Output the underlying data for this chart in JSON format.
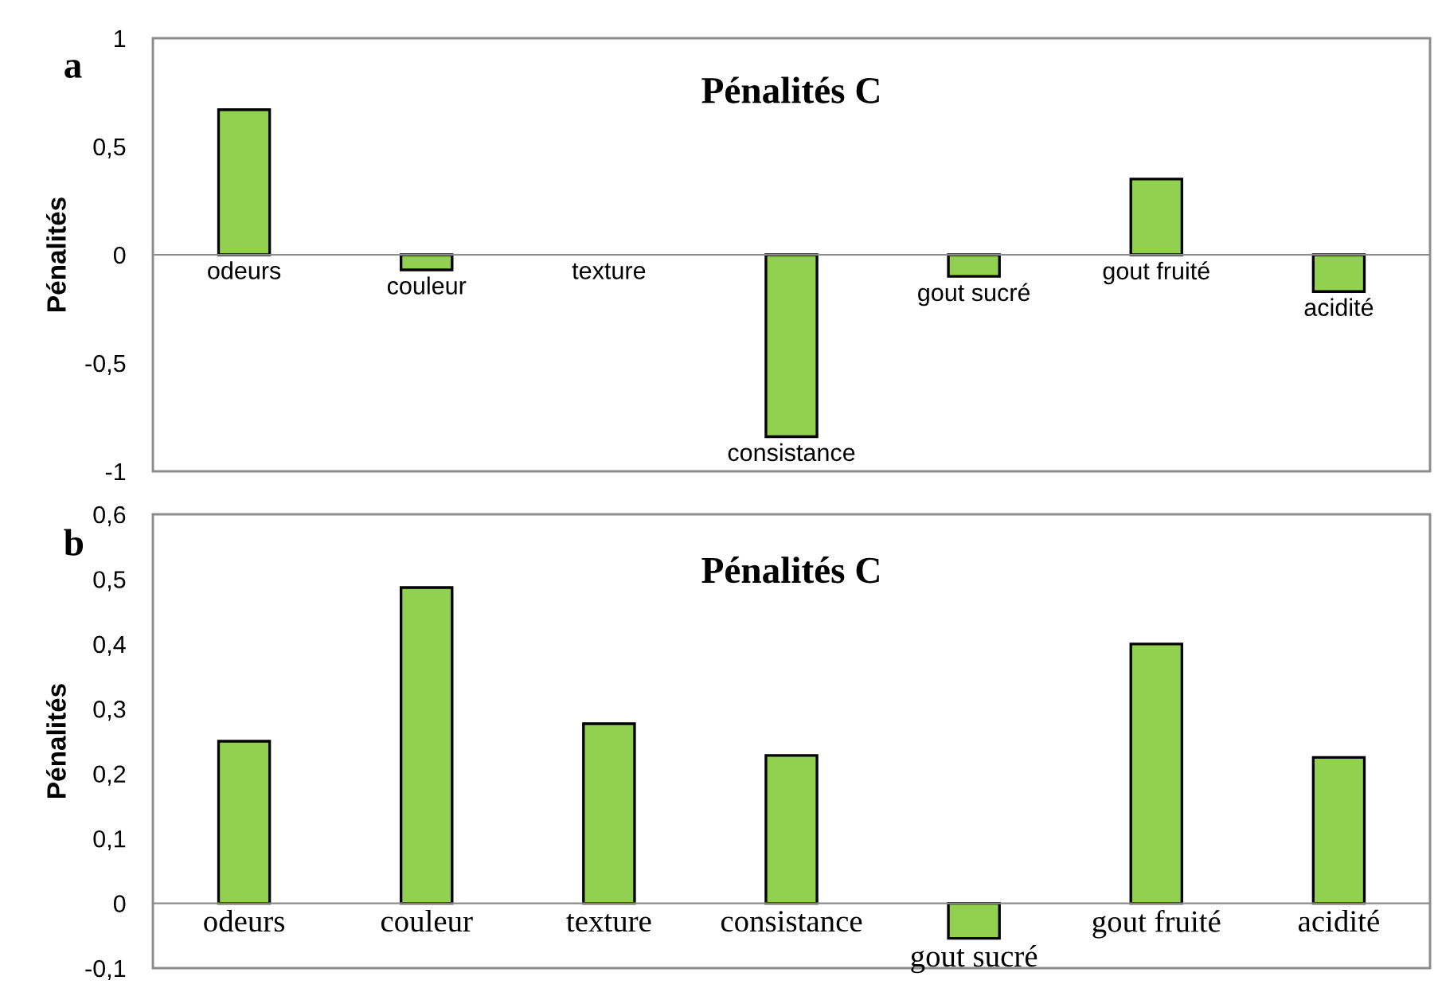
{
  "chart_data": [
    {
      "type": "bar",
      "title": "Pénalités C",
      "ylabel": "Pénalités",
      "annotations": [
        "a"
      ],
      "categories": [
        "odeurs",
        "couleur",
        "texture",
        "consistance",
        "gout sucré",
        "gout fruité",
        "acidité"
      ],
      "values": [
        0.67,
        -0.07,
        0,
        -0.84,
        -0.1,
        0.35,
        -0.17
      ],
      "color": "#92d050",
      "ylim": [
        -1,
        1
      ],
      "yticks": [
        -1,
        {
          "value": -0.5,
          "label": "-0,5"
        },
        0,
        {
          "value": 0.5,
          "label": "0,5"
        },
        1
      ],
      "grid": false,
      "legend": false
    },
    {
      "type": "bar",
      "title": "Pénalités C",
      "ylabel": "Pénalités",
      "annotations": [
        "b"
      ],
      "categories": [
        "odeurs",
        "couleur",
        "texture",
        "consistance",
        "gout sucré",
        "gout fruité",
        "acidité"
      ],
      "values": [
        0.25,
        0.487,
        0.277,
        0.228,
        -0.054,
        0.4,
        0.225
      ],
      "color": "#92d050",
      "ylim": [
        -0.1,
        0.6
      ],
      "yticks": [
        {
          "value": -0.1,
          "label": "-0,1"
        },
        0,
        {
          "value": 0.1,
          "label": "0,1"
        },
        {
          "value": 0.2,
          "label": "0,2"
        },
        {
          "value": 0.3,
          "label": "0,3"
        },
        {
          "value": 0.4,
          "label": "0,4"
        },
        {
          "value": 0.5,
          "label": "0,5"
        },
        {
          "value": 0.6,
          "label": "0,6"
        }
      ],
      "grid": false,
      "legend": false
    }
  ]
}
